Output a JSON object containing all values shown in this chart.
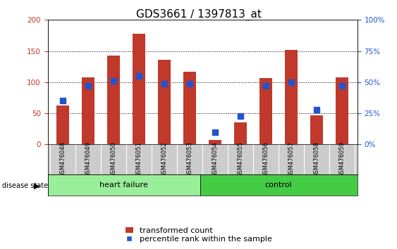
{
  "title": "GDS3661 / 1397813_at",
  "samples": [
    "GSM476048",
    "GSM476049",
    "GSM476050",
    "GSM476051",
    "GSM476052",
    "GSM476053",
    "GSM476054",
    "GSM476055",
    "GSM476056",
    "GSM476057",
    "GSM476058",
    "GSM476059"
  ],
  "red_values": [
    62,
    108,
    143,
    178,
    136,
    117,
    7,
    35,
    107,
    152,
    47,
    108
  ],
  "blue_pct": [
    35,
    47,
    51,
    55,
    49,
    49,
    10,
    23,
    47,
    50,
    28,
    47
  ],
  "heart_failure_count": 6,
  "control_count": 6,
  "bar_color": "#c0392b",
  "blue_color": "#2255cc",
  "ylim": [
    0,
    200
  ],
  "yticks_left": [
    0,
    50,
    100,
    150,
    200
  ],
  "yticks_right": [
    0,
    25,
    50,
    75,
    100
  ],
  "grid_color": "#000000",
  "bg_color": "#ffffff",
  "tick_area_color": "#cccccc",
  "hf_label_color": "#006600",
  "hf_bg_color": "#99ee99",
  "ctrl_bg_color": "#44cc44",
  "label_disease_state": "disease state",
  "label_heart_failure": "heart failure",
  "label_control": "control",
  "legend_red": "transformed count",
  "legend_blue": "percentile rank within the sample",
  "bar_width": 0.5,
  "title_fontsize": 11,
  "tick_fontsize": 7.5,
  "label_fontsize": 8,
  "legend_fontsize": 8
}
